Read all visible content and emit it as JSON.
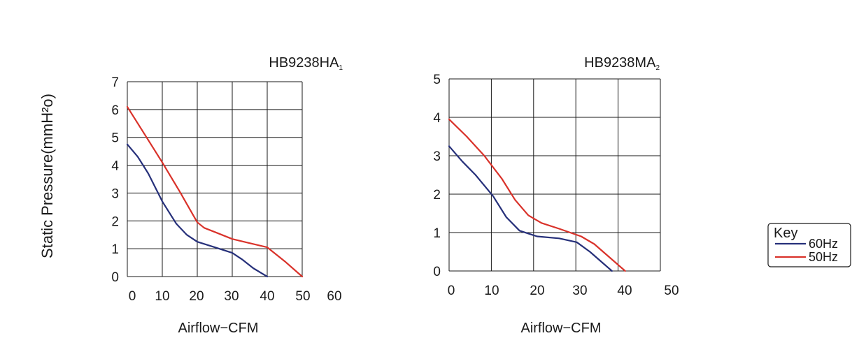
{
  "shared": {
    "ylabel": "Static Pressure(mmH²o)",
    "xlabel": "Airflow−CFM"
  },
  "legend": {
    "title": "Key",
    "entries": [
      {
        "label": "60Hz",
        "color": "#26307a"
      },
      {
        "label": "50Hz",
        "color": "#d9322a"
      }
    ]
  },
  "chart_data": [
    {
      "type": "line",
      "title": "HB9238HA",
      "title_sub": "1",
      "xlabel": "Airflow−CFM",
      "ylabel": "Static Pressure(mmH²o)",
      "xlim": [
        0,
        50
      ],
      "ylim": [
        0,
        7
      ],
      "xticks": [
        "0",
        "10",
        "20",
        "30",
        "40",
        "50",
        "60"
      ],
      "yticks": [
        "0",
        "1",
        "2",
        "3",
        "4",
        "5",
        "6",
        "7"
      ],
      "grid": true,
      "series": [
        {
          "name": "60Hz",
          "color": "#26307a",
          "points": [
            [
              0,
              4.75
            ],
            [
              3,
              4.3
            ],
            [
              6,
              3.7
            ],
            [
              10,
              2.7
            ],
            [
              14,
              1.9
            ],
            [
              17,
              1.5
            ],
            [
              20,
              1.25
            ],
            [
              25,
              1.05
            ],
            [
              30,
              0.85
            ],
            [
              33,
              0.6
            ],
            [
              36,
              0.3
            ],
            [
              40,
              0.0
            ]
          ]
        },
        {
          "name": "50Hz",
          "color": "#d9322a",
          "points": [
            [
              0,
              6.1
            ],
            [
              5,
              5.1
            ],
            [
              10,
              4.1
            ],
            [
              15,
              3.05
            ],
            [
              20,
              1.95
            ],
            [
              22,
              1.75
            ],
            [
              25,
              1.6
            ],
            [
              30,
              1.35
            ],
            [
              35,
              1.2
            ],
            [
              40,
              1.05
            ],
            [
              45,
              0.55
            ],
            [
              50,
              0.0
            ]
          ]
        }
      ]
    },
    {
      "type": "line",
      "title": "HB9238MA",
      "title_sub": "2",
      "xlabel": "Airflow−CFM",
      "ylabel": "Static Pressure(mmH²o)",
      "xlim": [
        0,
        48
      ],
      "ylim": [
        0,
        5
      ],
      "xticks": [
        "0",
        "10",
        "20",
        "30",
        "40",
        "50"
      ],
      "yticks": [
        "0",
        "1",
        "2",
        "3",
        "4",
        "5"
      ],
      "grid": true,
      "series": [
        {
          "name": "60Hz",
          "color": "#26307a",
          "points": [
            [
              0,
              3.25
            ],
            [
              3,
              2.85
            ],
            [
              6,
              2.5
            ],
            [
              10,
              1.95
            ],
            [
              13,
              1.4
            ],
            [
              16,
              1.05
            ],
            [
              20,
              0.9
            ],
            [
              25,
              0.85
            ],
            [
              29,
              0.75
            ],
            [
              32,
              0.5
            ],
            [
              35,
              0.2
            ],
            [
              37,
              0.0
            ]
          ]
        },
        {
          "name": "50Hz",
          "color": "#d9322a",
          "points": [
            [
              0,
              3.95
            ],
            [
              4,
              3.5
            ],
            [
              8,
              3.0
            ],
            [
              12,
              2.4
            ],
            [
              15,
              1.85
            ],
            [
              18,
              1.45
            ],
            [
              21,
              1.25
            ],
            [
              25,
              1.1
            ],
            [
              30,
              0.9
            ],
            [
              33,
              0.7
            ],
            [
              36,
              0.4
            ],
            [
              40,
              0.0
            ]
          ]
        }
      ]
    }
  ]
}
